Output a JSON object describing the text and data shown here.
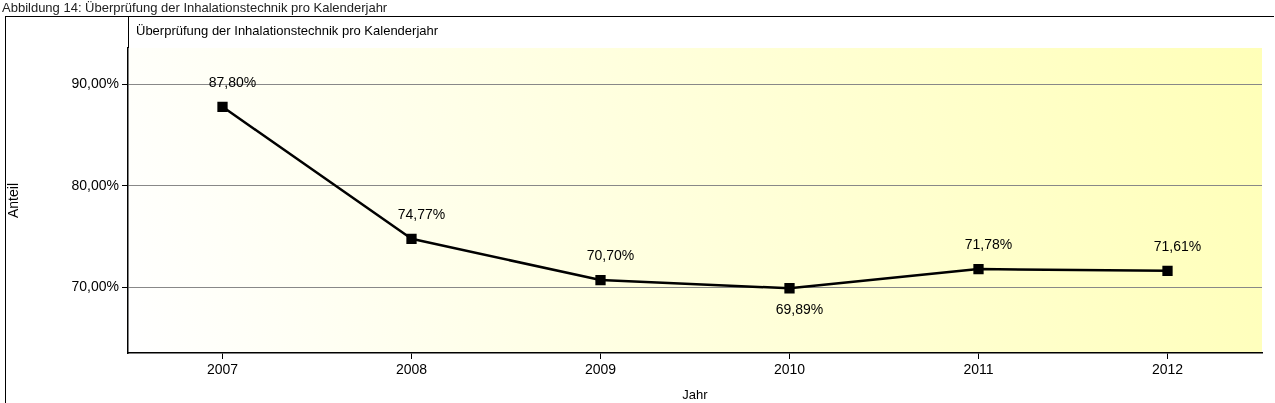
{
  "chart_data": {
    "type": "line",
    "title": "Überprüfung der Inhalationstechnik pro Kalenderjahr",
    "xlabel": "Jahr",
    "ylabel": "Anteil",
    "annotations": [
      "Abbildung 14: Überprüfung der Inhalationstechnik pro Kalenderjahr"
    ],
    "categories": [
      "2007",
      "2008",
      "2009",
      "2010",
      "2011",
      "2012"
    ],
    "series": [
      {
        "color": "#000000",
        "values": [
          87.8,
          74.77,
          70.7,
          69.89,
          71.78,
          71.61
        ],
        "value_labels": [
          "87,80%",
          "74,77%",
          "70,70%",
          "69,89%",
          "71,78%",
          "71,61%"
        ]
      }
    ],
    "ylim": [
      63.5,
      93.6
    ],
    "yticks": [
      {
        "value": 70,
        "label": "70,00%"
      },
      {
        "value": 80,
        "label": "80,00%"
      },
      {
        "value": 90,
        "label": "90,00%"
      }
    ],
    "grid": "y",
    "legend": false,
    "marker": "square",
    "line_style": "solid"
  }
}
